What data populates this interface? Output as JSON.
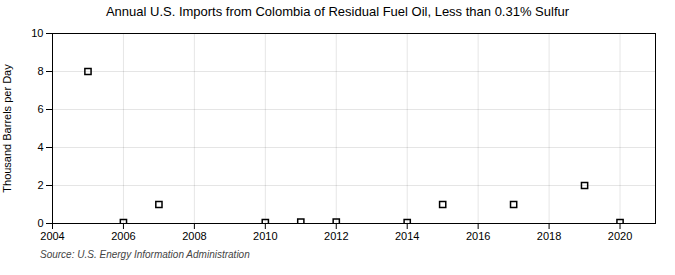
{
  "chart_data": {
    "type": "scatter",
    "title": "Annual U.S. Imports from Colombia of Residual Fuel Oil, Less than 0.31% Sulfur",
    "ylabel": "Thousand Barrels per Day",
    "source": "Source: U.S. Energy Information Administration",
    "x": [
      2005,
      2006,
      2007,
      2010,
      2011,
      2012,
      2014,
      2015,
      2017,
      2019,
      2020
    ],
    "values": [
      8.0,
      0.05,
      1.0,
      0.05,
      0.07,
      0.07,
      0.05,
      1.0,
      1.0,
      2.0,
      0.05
    ],
    "marker": "square",
    "xlim": [
      2004,
      2021
    ],
    "xticks": [
      2004,
      2006,
      2008,
      2010,
      2012,
      2014,
      2016,
      2018,
      2020
    ],
    "ylim": [
      0,
      10
    ],
    "yticks": [
      0,
      2,
      4,
      6,
      8,
      10
    ],
    "grid": true
  }
}
